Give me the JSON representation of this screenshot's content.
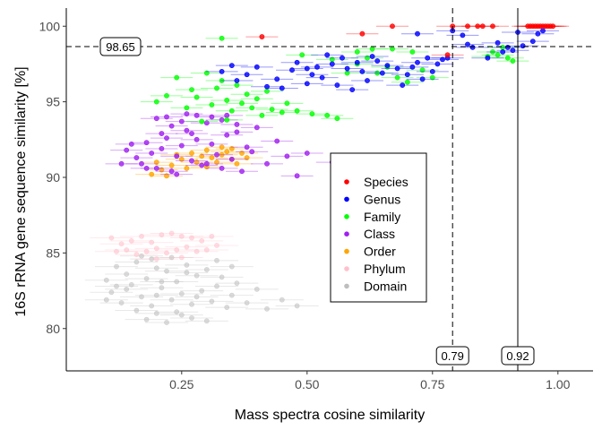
{
  "chart_data": {
    "type": "scatter",
    "xlabel": "Mass spectra cosine similarity",
    "ylabel": "16S rRNA gene sequence similarity [%]",
    "xlim": [
      0.02,
      1.07
    ],
    "ylim": [
      77.2,
      101.2
    ],
    "xticks": [
      0.25,
      0.5,
      0.75,
      1.0
    ],
    "xtick_labels": [
      "0.25",
      "0.50",
      "0.75",
      "1.00"
    ],
    "yticks": [
      80,
      85,
      90,
      95,
      100
    ],
    "ytick_labels": [
      "80",
      "85",
      "90",
      "95",
      "100"
    ],
    "grid": false,
    "legend_position": "center-right",
    "thresholds": [
      {
        "axis": "y",
        "value": 98.65,
        "label": "98.65",
        "style": "dashed"
      },
      {
        "axis": "x",
        "value": 0.79,
        "label": "0.79",
        "style": "dashed"
      },
      {
        "axis": "x",
        "value": 0.92,
        "label": "0.92",
        "style": "solid"
      }
    ],
    "series": [
      {
        "name": "Species",
        "color": "#ff0000",
        "points": [
          [
            0.41,
            99.3
          ],
          [
            0.61,
            99.5
          ],
          [
            0.67,
            100
          ],
          [
            0.78,
            98.1
          ],
          [
            0.79,
            100
          ],
          [
            0.82,
            100
          ],
          [
            0.84,
            100
          ],
          [
            0.85,
            100
          ],
          [
            0.87,
            100
          ],
          [
            0.94,
            100
          ],
          [
            0.95,
            100
          ],
          [
            0.96,
            100
          ],
          [
            0.97,
            100
          ],
          [
            0.98,
            100
          ],
          [
            0.99,
            100
          ],
          [
            0.945,
            100
          ],
          [
            0.955,
            100
          ],
          [
            0.965,
            100
          ],
          [
            0.975,
            100
          ],
          [
            0.985,
            100
          ]
        ]
      },
      {
        "name": "Genus",
        "color": "#0000ff",
        "points": [
          [
            0.47,
            97.1
          ],
          [
            0.5,
            97.2
          ],
          [
            0.52,
            97.3
          ],
          [
            0.55,
            97.5
          ],
          [
            0.58,
            97.2
          ],
          [
            0.6,
            97.6
          ],
          [
            0.63,
            98
          ],
          [
            0.66,
            97.4
          ],
          [
            0.68,
            97.2
          ],
          [
            0.7,
            96.8
          ],
          [
            0.72,
            97.6
          ],
          [
            0.74,
            97.9
          ],
          [
            0.75,
            97
          ],
          [
            0.77,
            97.8
          ],
          [
            0.44,
            96.5
          ],
          [
            0.4,
            97.3
          ],
          [
            0.38,
            96.8
          ],
          [
            0.36,
            96.4
          ],
          [
            0.42,
            96
          ],
          [
            0.45,
            95.9
          ],
          [
            0.5,
            96.2
          ],
          [
            0.53,
            96.6
          ],
          [
            0.56,
            96.1
          ],
          [
            0.59,
            95.8
          ],
          [
            0.62,
            96.4
          ],
          [
            0.65,
            96.9
          ],
          [
            0.69,
            96.1
          ],
          [
            0.33,
            97
          ],
          [
            0.35,
            97.4
          ],
          [
            0.48,
            97.6
          ],
          [
            0.51,
            96.8
          ],
          [
            0.57,
            97.9
          ],
          [
            0.54,
            98.1
          ],
          [
            0.61,
            97
          ],
          [
            0.64,
            97.7
          ],
          [
            0.71,
            97.3
          ],
          [
            0.73,
            96.5
          ],
          [
            0.76,
            97.5
          ],
          [
            0.78,
            97.9
          ],
          [
            0.83,
            98.6
          ],
          [
            0.86,
            97.9
          ],
          [
            0.89,
            98.3
          ],
          [
            0.9,
            98.6
          ],
          [
            0.91,
            98.4
          ],
          [
            0.92,
            99.6
          ],
          [
            0.93,
            98.7
          ],
          [
            0.95,
            99
          ],
          [
            0.96,
            99.5
          ],
          [
            0.97,
            99.7
          ],
          [
            0.79,
            99.7
          ],
          [
            0.72,
            99.5
          ],
          [
            0.82,
            98.8
          ],
          [
            0.88,
            98.9
          ],
          [
            0.81,
            99.4
          ]
        ]
      },
      {
        "name": "Family",
        "color": "#00ff00",
        "points": [
          [
            0.24,
            96.6
          ],
          [
            0.27,
            95.8
          ],
          [
            0.28,
            95.3
          ],
          [
            0.3,
            96.9
          ],
          [
            0.31,
            94.8
          ],
          [
            0.32,
            95.9
          ],
          [
            0.33,
            96.4
          ],
          [
            0.34,
            95.1
          ],
          [
            0.35,
            94.4
          ],
          [
            0.36,
            96.1
          ],
          [
            0.37,
            94.9
          ],
          [
            0.38,
            95.5
          ],
          [
            0.39,
            94.6
          ],
          [
            0.4,
            95.2
          ],
          [
            0.41,
            94.1
          ],
          [
            0.42,
            95.7
          ],
          [
            0.43,
            94.5
          ],
          [
            0.45,
            94.3
          ],
          [
            0.46,
            94.9
          ],
          [
            0.48,
            94.4
          ],
          [
            0.51,
            94.2
          ],
          [
            0.54,
            94.1
          ],
          [
            0.56,
            93.9
          ],
          [
            0.58,
            96.9
          ],
          [
            0.6,
            97.5
          ],
          [
            0.62,
            97.9
          ],
          [
            0.64,
            96.9
          ],
          [
            0.66,
            97.3
          ],
          [
            0.68,
            96.6
          ],
          [
            0.7,
            96.3
          ],
          [
            0.71,
            98.3
          ],
          [
            0.73,
            97.1
          ],
          [
            0.75,
            96.6
          ],
          [
            0.22,
            95.4
          ],
          [
            0.26,
            94.6
          ],
          [
            0.29,
            93.7
          ],
          [
            0.33,
            99.2
          ],
          [
            0.49,
            98.1
          ],
          [
            0.55,
            97.8
          ],
          [
            0.6,
            98.3
          ],
          [
            0.63,
            98.5
          ],
          [
            0.67,
            98.5
          ],
          [
            0.87,
            98.3
          ],
          [
            0.88,
            98.1
          ],
          [
            0.89,
            98.6
          ],
          [
            0.9,
            97.9
          ],
          [
            0.91,
            97.7
          ],
          [
            0.86,
            98
          ],
          [
            0.2,
            95
          ],
          [
            0.34,
            93.8
          ]
        ]
      },
      {
        "name": "Class",
        "color": "#a020f0",
        "points": [
          [
            0.14,
            91.8
          ],
          [
            0.16,
            91.3
          ],
          [
            0.17,
            90.9
          ],
          [
            0.18,
            92.3
          ],
          [
            0.19,
            91.6
          ],
          [
            0.2,
            90.6
          ],
          [
            0.21,
            91.9
          ],
          [
            0.22,
            92.6
          ],
          [
            0.23,
            90.4
          ],
          [
            0.24,
            91.4
          ],
          [
            0.25,
            92.1
          ],
          [
            0.26,
            93.1
          ],
          [
            0.27,
            91.1
          ],
          [
            0.28,
            92.5
          ],
          [
            0.29,
            90.8
          ],
          [
            0.3,
            93.6
          ],
          [
            0.31,
            92.2
          ],
          [
            0.32,
            91.5
          ],
          [
            0.33,
            90.6
          ],
          [
            0.34,
            92.8
          ],
          [
            0.35,
            91.2
          ],
          [
            0.36,
            93.5
          ],
          [
            0.37,
            90.4
          ],
          [
            0.38,
            92
          ],
          [
            0.39,
            91.7
          ],
          [
            0.4,
            93.3
          ],
          [
            0.42,
            90.9
          ],
          [
            0.44,
            92.4
          ],
          [
            0.46,
            91.4
          ],
          [
            0.48,
            90.1
          ],
          [
            0.5,
            91.6
          ],
          [
            0.55,
            91
          ],
          [
            0.58,
            90.5
          ],
          [
            0.2,
            93.9
          ],
          [
            0.22,
            94
          ],
          [
            0.25,
            93.7
          ],
          [
            0.28,
            94.1
          ],
          [
            0.31,
            94
          ],
          [
            0.34,
            94.1
          ],
          [
            0.36,
            93
          ],
          [
            0.24,
            90.2
          ],
          [
            0.18,
            90.6
          ],
          [
            0.15,
            92.2
          ],
          [
            0.13,
            90.9
          ],
          [
            0.27,
            92.9
          ],
          [
            0.3,
            90.9
          ],
          [
            0.33,
            93.8
          ],
          [
            0.26,
            94.2
          ],
          [
            0.23,
            93.4
          ],
          [
            0.21,
            92.9
          ]
        ]
      },
      {
        "name": "Order",
        "color": "#ffa500",
        "points": [
          [
            0.19,
            90.2
          ],
          [
            0.21,
            90.5
          ],
          [
            0.23,
            90.8
          ],
          [
            0.25,
            91.2
          ],
          [
            0.27,
            91.6
          ],
          [
            0.28,
            91
          ],
          [
            0.29,
            91.4
          ],
          [
            0.3,
            91.8
          ],
          [
            0.31,
            91.3
          ],
          [
            0.32,
            91
          ],
          [
            0.33,
            91.5
          ],
          [
            0.34,
            91.7
          ],
          [
            0.35,
            91.2
          ],
          [
            0.36,
            90.9
          ],
          [
            0.37,
            91.6
          ],
          [
            0.38,
            91.3
          ],
          [
            0.26,
            90.6
          ],
          [
            0.22,
            90.1
          ],
          [
            0.24,
            91.5
          ],
          [
            0.3,
            90.7
          ],
          [
            0.33,
            92
          ],
          [
            0.35,
            91.9
          ],
          [
            0.2,
            91
          ]
        ]
      },
      {
        "name": "Phylum",
        "color": "#ffc0cb",
        "points": [
          [
            0.11,
            86
          ],
          [
            0.13,
            85.6
          ],
          [
            0.15,
            85.8
          ],
          [
            0.17,
            86.1
          ],
          [
            0.19,
            85.7
          ],
          [
            0.21,
            86.2
          ],
          [
            0.23,
            86.3
          ],
          [
            0.25,
            86.1
          ],
          [
            0.27,
            86
          ],
          [
            0.29,
            85.8
          ],
          [
            0.31,
            86.1
          ],
          [
            0.18,
            85.1
          ],
          [
            0.2,
            85.3
          ],
          [
            0.22,
            85
          ],
          [
            0.24,
            85.2
          ],
          [
            0.26,
            85.4
          ],
          [
            0.28,
            85.1
          ],
          [
            0.3,
            85.2
          ],
          [
            0.16,
            84.9
          ],
          [
            0.14,
            85.2
          ],
          [
            0.32,
            85.5
          ],
          [
            0.2,
            84.6
          ],
          [
            0.25,
            84.7
          ],
          [
            0.12,
            85.1
          ]
        ]
      },
      {
        "name": "Domain",
        "color": "#bebebe",
        "points": [
          [
            0.1,
            83.2
          ],
          [
            0.11,
            82.4
          ],
          [
            0.12,
            84.1
          ],
          [
            0.13,
            81.7
          ],
          [
            0.14,
            83.6
          ],
          [
            0.15,
            82.9
          ],
          [
            0.16,
            84.4
          ],
          [
            0.17,
            82.1
          ],
          [
            0.18,
            83.3
          ],
          [
            0.19,
            81.5
          ],
          [
            0.2,
            84
          ],
          [
            0.21,
            82.7
          ],
          [
            0.22,
            83.8
          ],
          [
            0.23,
            81.9
          ],
          [
            0.24,
            83.1
          ],
          [
            0.25,
            82.3
          ],
          [
            0.26,
            84.2
          ],
          [
            0.27,
            81.6
          ],
          [
            0.28,
            83.5
          ],
          [
            0.29,
            82.5
          ],
          [
            0.3,
            83.9
          ],
          [
            0.31,
            81.8
          ],
          [
            0.32,
            82.8
          ],
          [
            0.33,
            83.4
          ],
          [
            0.34,
            81.4
          ],
          [
            0.35,
            82.2
          ],
          [
            0.36,
            83
          ],
          [
            0.38,
            81.7
          ],
          [
            0.4,
            82.6
          ],
          [
            0.42,
            81.3
          ],
          [
            0.45,
            81.9
          ],
          [
            0.48,
            81.5
          ],
          [
            0.17,
            84.8
          ],
          [
            0.19,
            84.6
          ],
          [
            0.21,
            83.1
          ],
          [
            0.23,
            84.7
          ],
          [
            0.14,
            82.6
          ],
          [
            0.16,
            81.2
          ],
          [
            0.18,
            80.6
          ],
          [
            0.2,
            81
          ],
          [
            0.22,
            80.4
          ],
          [
            0.25,
            80.9
          ],
          [
            0.27,
            80.7
          ],
          [
            0.3,
            80.5
          ],
          [
            0.12,
            82.8
          ],
          [
            0.1,
            81.9
          ],
          [
            0.24,
            81.1
          ],
          [
            0.28,
            82.1
          ],
          [
            0.32,
            84.5
          ],
          [
            0.35,
            84.1
          ],
          [
            0.26,
            83.7
          ],
          [
            0.2,
            82.2
          ]
        ]
      }
    ]
  }
}
